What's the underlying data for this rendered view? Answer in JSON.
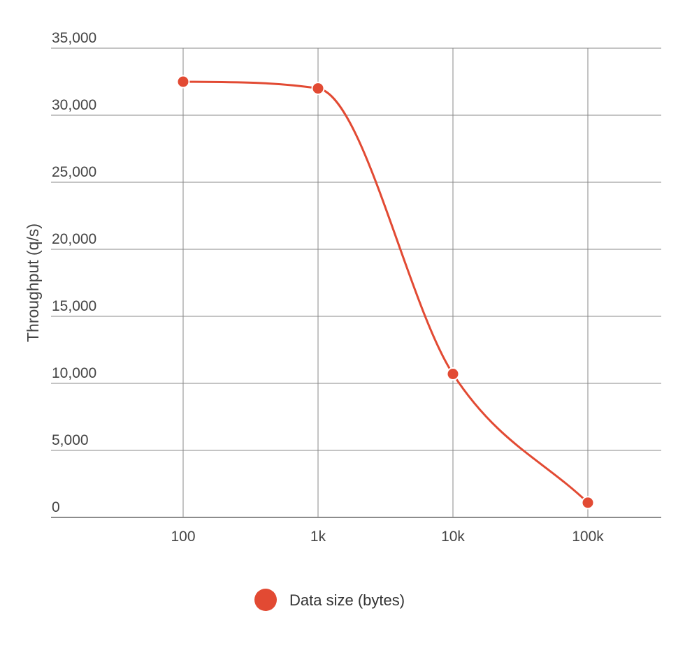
{
  "chart_data": {
    "type": "line",
    "title": "",
    "xlabel": "",
    "ylabel": "Throughput (q/s)",
    "x_scale": "log",
    "categories": [
      "100",
      "1k",
      "10k",
      "100k"
    ],
    "x": [
      100,
      1000,
      10000,
      100000
    ],
    "series": [
      {
        "name": "Data size (bytes)",
        "values": [
          32500,
          32000,
          10700,
          1100
        ],
        "color": "#e24a33"
      }
    ],
    "ylim": [
      0,
      35000
    ],
    "yticks": [
      0,
      5000,
      10000,
      15000,
      20000,
      25000,
      30000,
      35000
    ],
    "ytick_labels": [
      "0",
      "5,000",
      "10,000",
      "15,000",
      "20,000",
      "25,000",
      "30,000",
      "35,000"
    ],
    "grid": true,
    "legend": "bottom-center",
    "line_smooth": true
  },
  "colors": {
    "series": "#e24a33",
    "grid": "#888888",
    "text": "#444444"
  }
}
